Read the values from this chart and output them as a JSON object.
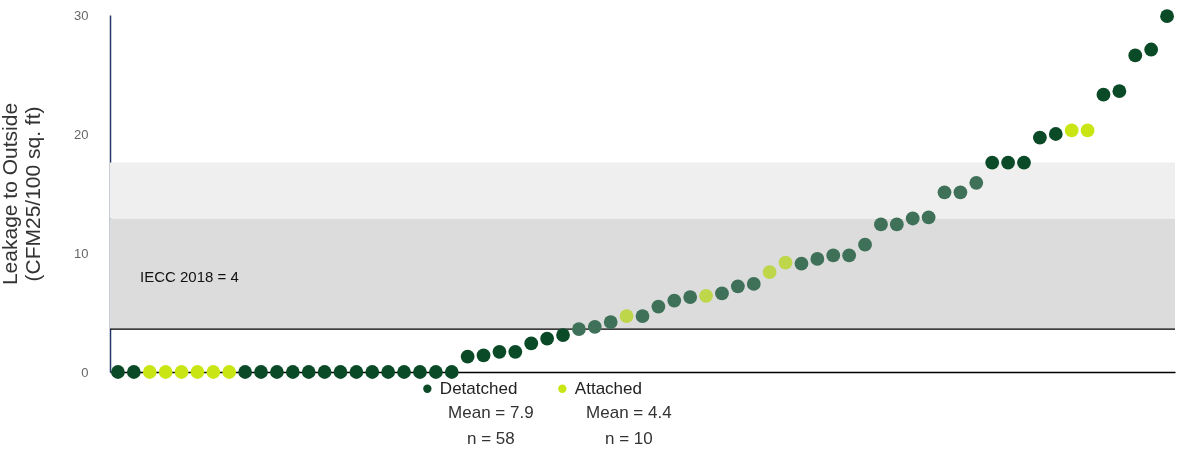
{
  "chart_data": {
    "type": "scatter",
    "ylabel": "Leakage to Outside\n(CFM25/100 sq. ft)",
    "categories": [
      null,
      null,
      null,
      null,
      null,
      null,
      null,
      null,
      null,
      null,
      null,
      null,
      null,
      null,
      null,
      null,
      null,
      null,
      null,
      null,
      null,
      null,
      null,
      null,
      null,
      null,
      null,
      null,
      null,
      null,
      null,
      null,
      null,
      null,
      null,
      null,
      null,
      null,
      null,
      null,
      null,
      null,
      null,
      null,
      null,
      null,
      null,
      null,
      null,
      null,
      null,
      null,
      null,
      null,
      null,
      null,
      null,
      null,
      null,
      null,
      null,
      null,
      null,
      null,
      null,
      null,
      null
    ],
    "series": [
      {
        "name": "Detatched",
        "color": "#0b4a27",
        "values": [
          0,
          0,
          null,
          null,
          null,
          null,
          null,
          null,
          0,
          0,
          0,
          0,
          0,
          0,
          0,
          0,
          0,
          0,
          0,
          0,
          0,
          0,
          1.3,
          1.4,
          1.7,
          1.7,
          2.4,
          2.8,
          3.1,
          3.6,
          3.8,
          4.2,
          null,
          4.7,
          5.5,
          6.0,
          6.3,
          null,
          6.6,
          7.2,
          7.4,
          null,
          null,
          9.1,
          9.5,
          9.8,
          9.8,
          10.7,
          12.4,
          12.4,
          12.9,
          13.0,
          15.1,
          15.1,
          15.9,
          17.6,
          17.6,
          17.6,
          19.7,
          20.0,
          null,
          null,
          23.3,
          23.6,
          26.6,
          27.1,
          29.9
        ],
        "colors": [
          "#0b4a27",
          "#0b4a27",
          null,
          null,
          null,
          null,
          null,
          null,
          "#0b4a27",
          "#0b4a27",
          "#0b4a27",
          "#0b4a27",
          "#0b4a27",
          "#0b4a27",
          "#0b4a27",
          "#0b4a27",
          "#0b4a27",
          "#0b4a27",
          "#0b4a27",
          "#0b4a27",
          "#0b4a27",
          "#0b4a27",
          "#0b4a27",
          "#0b4a27",
          "#0b4a27",
          "#0b4a27",
          "#0b4a27",
          "#0b4a27",
          "#0b4a27",
          "#3f7158",
          "#3f7158",
          "#3f7158",
          null,
          "#3f7158",
          "#3f7158",
          "#3f7158",
          "#3f7158",
          null,
          "#3f7158",
          "#3f7158",
          "#3f7158",
          null,
          null,
          "#3f7158",
          "#3f7158",
          "#3f7158",
          "#3f7158",
          "#3f7158",
          "#3f7158",
          "#3f7158",
          "#3f7158",
          "#3f7158",
          "#3f7158",
          "#3f7158",
          "#3f7158",
          "#0b4a27",
          "#0b4a27",
          "#0b4a27",
          "#0b4a27",
          "#0b4a27",
          null,
          null,
          "#0b4a27",
          "#0b4a27",
          "#0b4a27",
          "#0b4a27",
          "#0b4a27"
        ]
      },
      {
        "name": "Attached",
        "color": "#c9e614",
        "values": [
          null,
          null,
          0,
          0,
          0,
          0,
          0,
          0,
          null,
          null,
          null,
          null,
          null,
          null,
          null,
          null,
          null,
          null,
          null,
          null,
          null,
          null,
          null,
          null,
          null,
          null,
          null,
          null,
          null,
          null,
          null,
          null,
          4.7,
          null,
          null,
          null,
          null,
          6.4,
          null,
          null,
          null,
          8.4,
          9.2,
          null,
          null,
          null,
          null,
          null,
          null,
          null,
          null,
          null,
          null,
          null,
          null,
          null,
          null,
          null,
          null,
          null,
          20.3,
          20.3,
          null,
          null,
          null,
          null,
          null
        ],
        "colors": [
          null,
          null,
          "#c9e614",
          "#c9e614",
          "#c9e614",
          "#c9e614",
          "#c9e614",
          "#c9e614",
          null,
          null,
          null,
          null,
          null,
          null,
          null,
          null,
          null,
          null,
          null,
          null,
          null,
          null,
          null,
          null,
          null,
          null,
          null,
          null,
          null,
          null,
          null,
          null,
          "#bdd64a",
          null,
          null,
          null,
          null,
          "#bdd64a",
          null,
          null,
          null,
          "#bdd64a",
          "#bdd64a",
          null,
          null,
          null,
          null,
          null,
          null,
          null,
          null,
          null,
          null,
          null,
          null,
          null,
          null,
          null,
          null,
          null,
          "#c9e614",
          "#c9e614",
          null,
          null,
          null,
          null,
          null
        ]
      }
    ],
    "ylim": [
      0,
      30
    ],
    "yticks": [
      0,
      10,
      20,
      30
    ],
    "bands": [
      {
        "axis": "y",
        "from": 3.6,
        "to": 12.9,
        "color": "#dcdcdc"
      },
      {
        "axis": "y",
        "from": 12.9,
        "to": 17.6,
        "color": "#efefef"
      }
    ],
    "ref_lines": [
      {
        "axis": "y",
        "value": 3.6,
        "label": "IECC 2018 = 4",
        "color": "#000000"
      }
    ],
    "annotations": [
      "Mean = 7.9",
      "Mean = 4.4",
      "n = 58",
      "n = 10"
    ],
    "legend": "bottom",
    "marker": "circle",
    "tick_labels": "y"
  }
}
